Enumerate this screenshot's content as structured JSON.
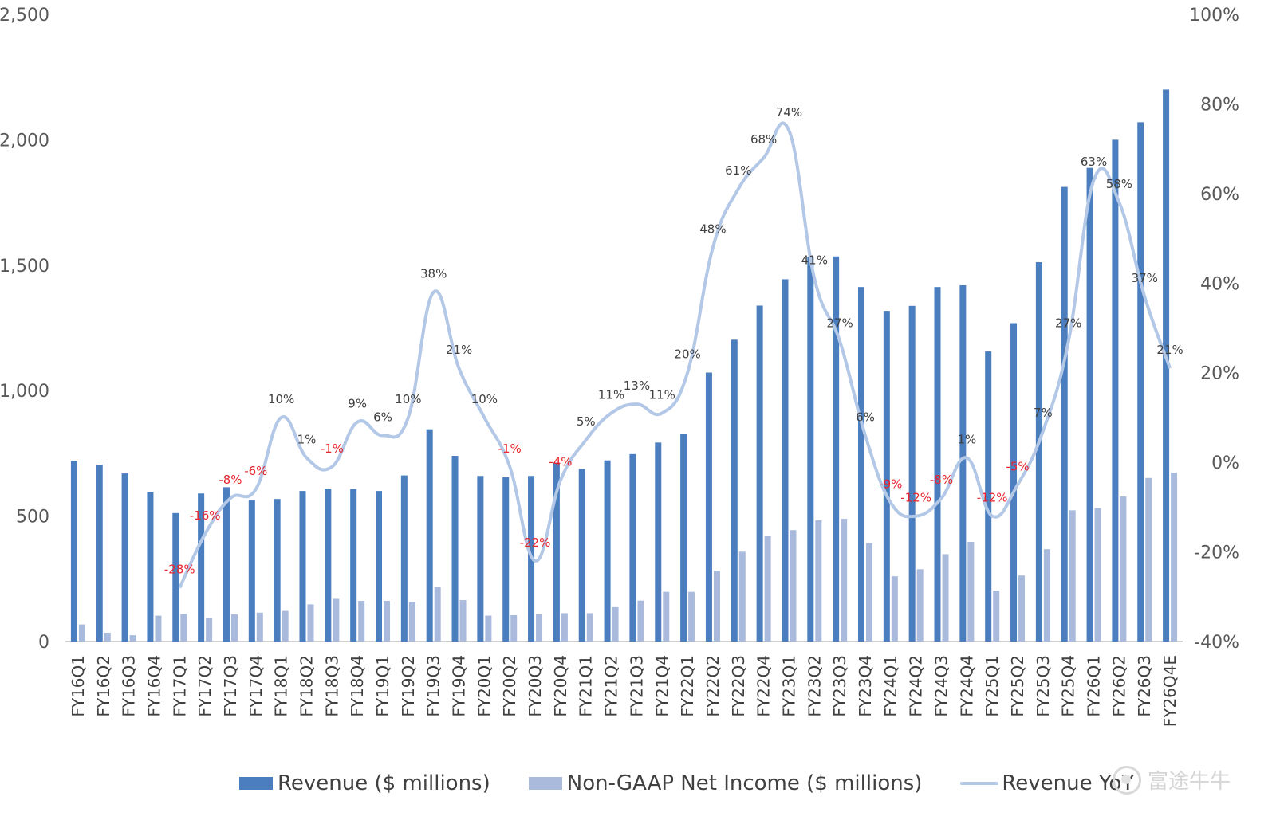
{
  "chart_data": {
    "type": "bar",
    "categories": [
      "FY16Q1",
      "FY16Q2",
      "FY16Q3",
      "FY16Q4",
      "FY17Q1",
      "FY17Q2",
      "FY17Q3",
      "FY17Q4",
      "FY18Q1",
      "FY18Q2",
      "FY18Q3",
      "FY18Q4",
      "FY19Q1",
      "FY19Q2",
      "FY19Q3",
      "FY19Q4",
      "FY20Q1",
      "FY20Q2",
      "FY20Q3",
      "FY20Q4",
      "FY21Q1",
      "FY21Q2",
      "FY21Q3",
      "FY21Q4",
      "FY22Q1",
      "FY22Q2",
      "FY22Q3",
      "FY22Q4",
      "FY23Q1",
      "FY23Q2",
      "FY23Q3",
      "FY23Q4",
      "FY24Q1",
      "FY24Q2",
      "FY24Q3",
      "FY24Q4",
      "FY25Q1",
      "FY25Q2",
      "FY25Q3",
      "FY25Q4",
      "FY26Q1",
      "FY26Q2",
      "FY26Q3",
      "FY26Q4E"
    ],
    "series": [
      {
        "name": "Revenue ($ millions)",
        "type": "bar",
        "axis": "left",
        "color": "#4a7ebf",
        "values": [
          720,
          705,
          670,
          597,
          512,
          590,
          615,
          562,
          568,
          600,
          610,
          608,
          600,
          662,
          846,
          740,
          660,
          655,
          660,
          713,
          688,
          722,
          747,
          793,
          829,
          1072,
          1203,
          1339,
          1444,
          1534,
          1535,
          1413,
          1318,
          1338,
          1413,
          1420,
          1156,
          1269,
          1512,
          1812,
          1888,
          2000,
          2070,
          2200
        ]
      },
      {
        "name": "Non-GAAP Net Income ($ millions)",
        "type": "bar",
        "axis": "left",
        "color": "#a9badc",
        "values": [
          68,
          35,
          25,
          103,
          110,
          93,
          108,
          115,
          122,
          148,
          170,
          162,
          162,
          158,
          218,
          165,
          103,
          105,
          108,
          113,
          113,
          137,
          163,
          198,
          198,
          282,
          358,
          422,
          444,
          483,
          489,
          392,
          260,
          288,
          348,
          397,
          203,
          263,
          368,
          523,
          532,
          578,
          652,
          673
        ]
      },
      {
        "name": "Revenue YoY",
        "type": "line",
        "axis": "right",
        "color": "#b3c7e6",
        "start_index": 4,
        "values": [
          null,
          null,
          null,
          null,
          -28,
          -16,
          -8,
          -6,
          10,
          1,
          -1,
          9,
          6,
          10,
          38,
          21,
          10,
          -1,
          -22,
          -4,
          5,
          11,
          13,
          11,
          20,
          48,
          61,
          68,
          74,
          41,
          27,
          6,
          -9,
          -12,
          -8,
          1,
          -12,
          -5,
          7,
          27,
          63,
          58,
          37,
          21
        ],
        "labels": [
          "",
          "",
          "",
          "",
          "-28%",
          "-16%",
          "-8%",
          "-6%",
          "10%",
          "1%",
          "-1%",
          "9%",
          "6%",
          "10%",
          "38%",
          "21%",
          "10%",
          "-1%",
          "-22%",
          "-4%",
          "5%",
          "11%",
          "13%",
          "11%",
          "20%",
          "48%",
          "61%",
          "68%",
          "74%",
          "41%",
          "27%",
          "6%",
          "-9%",
          "-12%",
          "-8%",
          "1%",
          "-12%",
          "-5%",
          "7%",
          "27%",
          "63%",
          "58%",
          "37%",
          "21%"
        ]
      }
    ],
    "y_left": {
      "min": 0,
      "max": 2500,
      "ticks": [
        0,
        500,
        1000,
        1500,
        2000,
        2500
      ],
      "tick_labels": [
        "0",
        "500",
        "1,000",
        "1,500",
        "2,000",
        "2,500"
      ]
    },
    "y_right": {
      "min": -40,
      "max": 100,
      "ticks": [
        -40,
        -20,
        0,
        20,
        40,
        60,
        80,
        100
      ],
      "tick_labels": [
        "-40%",
        "-20%",
        "0%",
        "20%",
        "40%",
        "60%",
        "80%",
        "100%"
      ]
    },
    "negative_label_color": "#e8242c",
    "positive_label_color": "#404040",
    "grid": false,
    "legend_position": "bottom"
  },
  "legend": {
    "revenue": "Revenue ($ millions)",
    "net_income": "Non-GAAP Net Income ($ millions)",
    "yoy": "Revenue YoY"
  },
  "watermark": "富途牛牛"
}
